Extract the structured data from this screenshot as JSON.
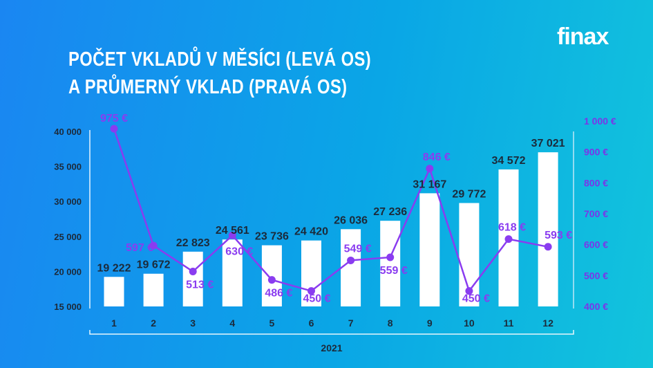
{
  "logo": "finax",
  "title_lines": [
    "POČET VKLADŮ V MĚSÍCI (LEVÁ OS)",
    "A PRŮMERNÝ VKLAD (PRAVÁ OS)"
  ],
  "chart_data": {
    "type": "bar+line",
    "title": "POČET VKLADŮ V MĚSÍCI (LEVÁ OS) A PRŮMERNÝ VKLAD (PRAVÁ OS)",
    "categories": [
      "1",
      "2",
      "3",
      "4",
      "5",
      "6",
      "7",
      "8",
      "9",
      "10",
      "11",
      "12"
    ],
    "xlabel": "2021",
    "left_axis": {
      "range": [
        15000,
        40000
      ],
      "ticks": [
        15000,
        20000,
        25000,
        30000,
        35000,
        40000
      ],
      "tick_labels": [
        "15 000",
        "20 000",
        "25 000",
        "30 000",
        "35 000",
        "40 000"
      ]
    },
    "right_axis": {
      "range": [
        400,
        1000
      ],
      "ticks": [
        400,
        500,
        600,
        700,
        800,
        900,
        1000
      ],
      "tick_labels": [
        "400 €",
        "500 €",
        "600 €",
        "700 €",
        "800 €",
        "900 €",
        "1 000 €"
      ]
    },
    "series": [
      {
        "type": "bar",
        "axis": "left",
        "color": "#ffffff",
        "values": [
          19222,
          19672,
          22823,
          24561,
          23736,
          24420,
          26036,
          27236,
          31167,
          29772,
          34572,
          37021
        ],
        "labels": [
          "19 222",
          "19 672",
          "22 823",
          "24 561",
          "23 736",
          "24 420",
          "26 036",
          "27 236",
          "31 167",
          "29 772",
          "34 572",
          "37 021"
        ]
      },
      {
        "type": "line",
        "axis": "right",
        "color": "#8a3cf0",
        "values": [
          975,
          597,
          513,
          630,
          486,
          450,
          549,
          559,
          846,
          450,
          618,
          593
        ],
        "labels": [
          "975 €",
          "597 €",
          "513 €",
          "630 €",
          "486 €",
          "450 €",
          "549 €",
          "559 €",
          "846 €",
          "450 €",
          "618 €",
          "593 €"
        ]
      }
    ],
    "grid": false,
    "legend": "none"
  }
}
